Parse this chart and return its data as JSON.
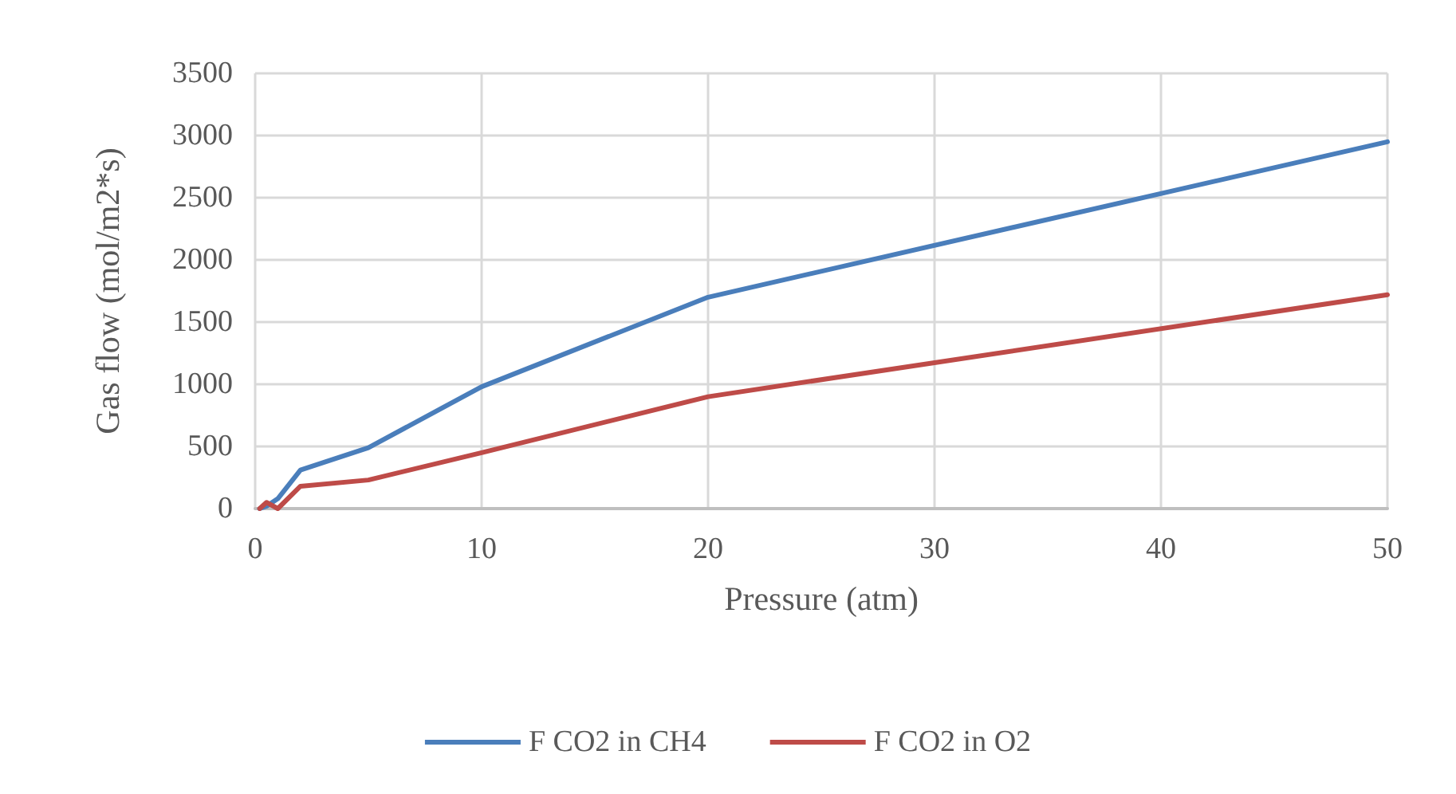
{
  "chart_data": {
    "type": "line",
    "xlabel": "Pressure (atm)",
    "ylabel": "Gas flow (mol/m2*s)",
    "x": [
      0.2,
      0.5,
      1,
      2,
      5,
      10,
      20,
      50
    ],
    "series": [
      {
        "name": "F CO2 in CH4",
        "color": "#4a7ebb",
        "values": [
          0,
          20,
          80,
          310,
          490,
          980,
          1700,
          2950
        ]
      },
      {
        "name": "F CO2 in O2",
        "color": "#be4b48",
        "values": [
          0,
          50,
          0,
          180,
          230,
          450,
          900,
          1720
        ]
      }
    ],
    "xlim": [
      0,
      50
    ],
    "xticks": [
      0,
      10,
      20,
      30,
      40,
      50
    ],
    "ylim": [
      0,
      3500
    ],
    "yticks": [
      0,
      500,
      1000,
      1500,
      2000,
      2500,
      3000,
      3500
    ],
    "grid": true,
    "legend": "bottom",
    "marker": "none",
    "line_style": "solid"
  }
}
